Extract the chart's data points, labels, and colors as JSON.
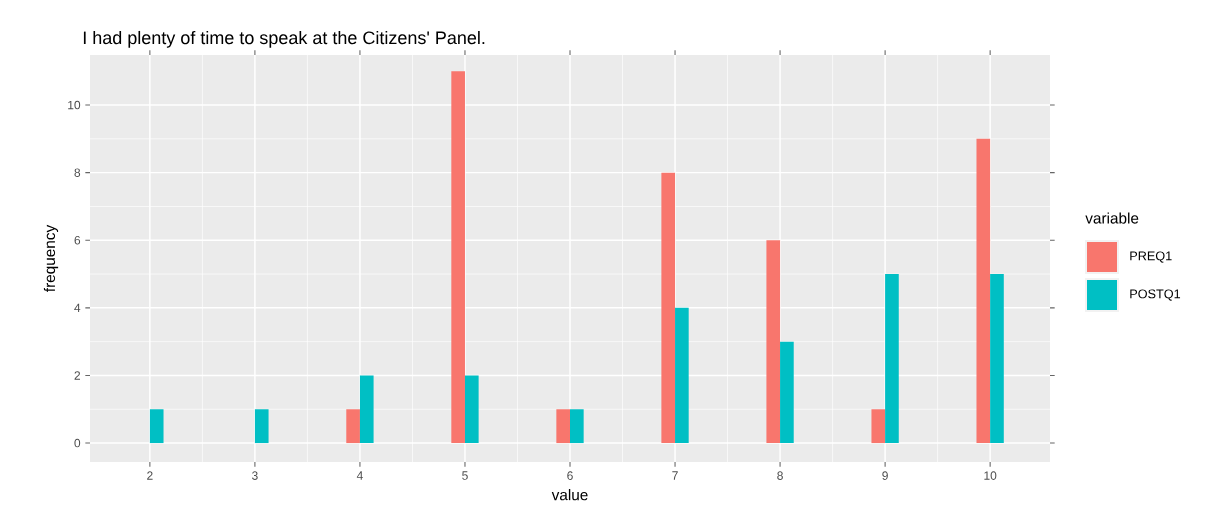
{
  "chart_data": {
    "type": "bar",
    "title": "I had plenty of time to speak at the Citizens' Panel.",
    "xlabel": "value",
    "ylabel": "frequency",
    "legend_title": "variable",
    "categories": [
      "2",
      "3",
      "4",
      "5",
      "6",
      "7",
      "8",
      "9",
      "10"
    ],
    "series": [
      {
        "name": "PREQ1",
        "color": "#f8766d",
        "values": [
          null,
          null,
          1,
          11,
          1,
          8,
          6,
          1,
          9
        ]
      },
      {
        "name": "POSTQ1",
        "color": "#00bfc4",
        "values": [
          1,
          1,
          2,
          2,
          1,
          4,
          3,
          5,
          5
        ]
      }
    ],
    "ylim": [
      -0.56,
      11.48
    ],
    "yticks": [
      0,
      2,
      4,
      6,
      8,
      10
    ],
    "grid": true,
    "legend": "right"
  }
}
